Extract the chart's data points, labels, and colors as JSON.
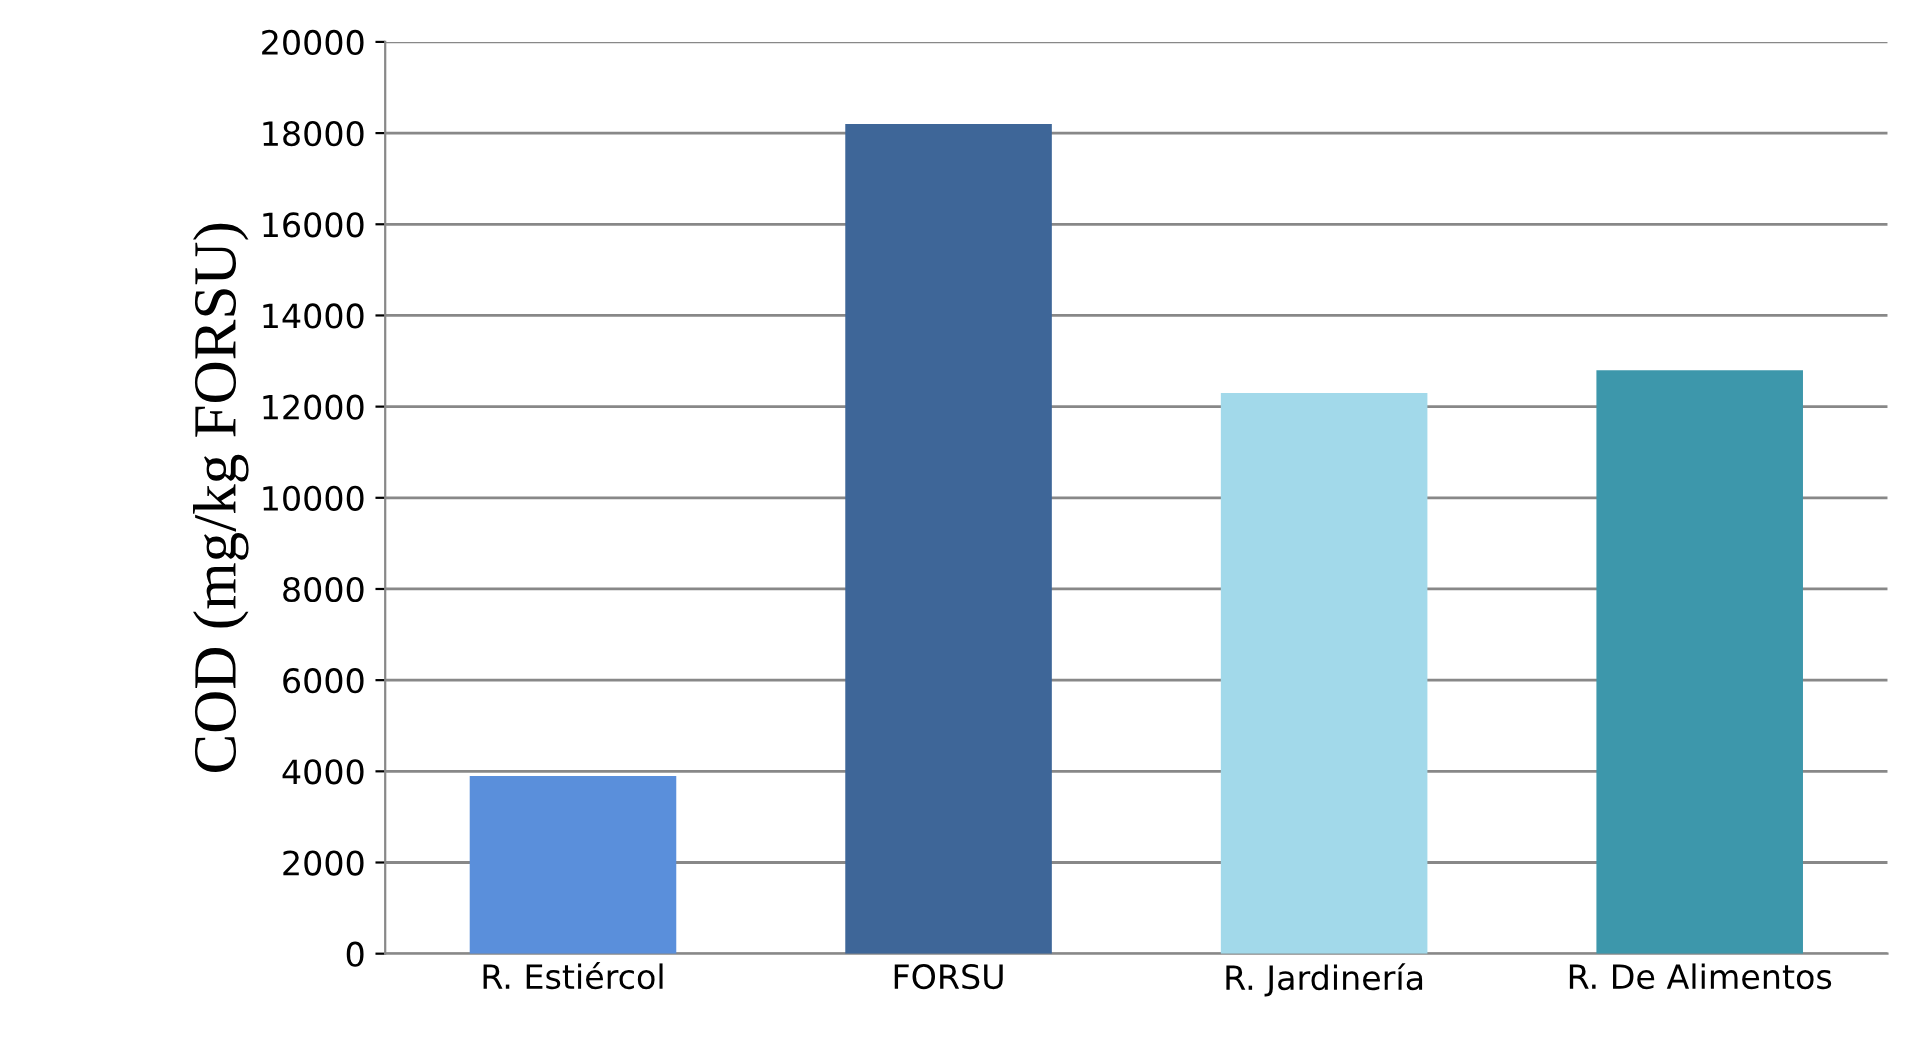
{
  "chart_data": {
    "type": "bar",
    "ylabel": "COD (mg/kg FORSU)",
    "categories": [
      "R. Estiércol",
      "FORSU",
      "R. Jardinería",
      "R. De Alimentos"
    ],
    "values": [
      3900,
      18200,
      12300,
      12800
    ],
    "colors": [
      "#5a8fdb",
      "#3e6698",
      "#a2d9ea",
      "#3d97ab"
    ],
    "ylim": [
      0,
      20000
    ],
    "yticks": [
      0,
      2000,
      4000,
      6000,
      8000,
      10000,
      12000,
      14000,
      16000,
      18000,
      20000
    ],
    "grid": "y"
  }
}
